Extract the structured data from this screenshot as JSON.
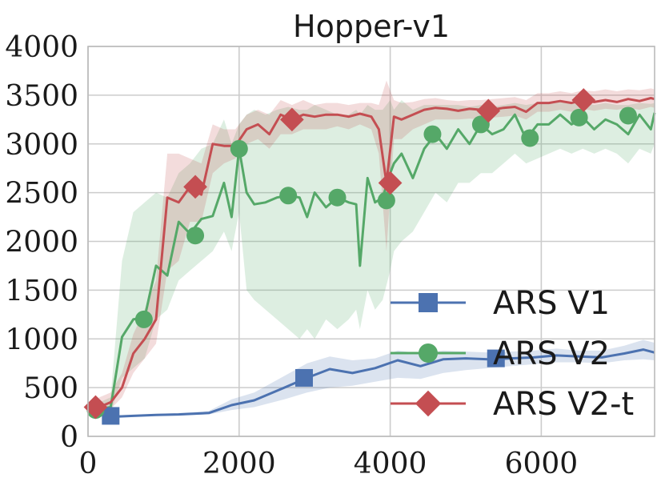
{
  "chart_data": {
    "type": "line",
    "title": "Hopper-v1",
    "xlabel": "",
    "ylabel": "",
    "xlim": [
      0,
      7500
    ],
    "ylim": [
      0,
      4000
    ],
    "xticks": [
      "0",
      "2000",
      "4000",
      "6000"
    ],
    "xtick_values": [
      0,
      2000,
      4000,
      6000
    ],
    "yticks": [
      "0",
      "500",
      "1000",
      "1500",
      "2000",
      "2500",
      "3000",
      "3500",
      "4000"
    ],
    "ytick_values": [
      0,
      500,
      1000,
      1500,
      2000,
      2500,
      3000,
      3500,
      4000
    ],
    "grid": true,
    "legend_position": "lower-right",
    "series": [
      {
        "name": "ARS V1",
        "color": "#4c72b0",
        "marker": "square",
        "x": [
          300,
          600,
          900,
          1200,
          1600,
          1900,
          2200,
          2600,
          2900,
          3200,
          3500,
          3800,
          4100,
          4400,
          4700,
          5000,
          5300,
          5600,
          5900,
          6200,
          6500,
          6800,
          7100,
          7350,
          7500
        ],
        "y": [
          200,
          210,
          220,
          225,
          240,
          320,
          370,
          500,
          600,
          690,
          650,
          700,
          780,
          720,
          790,
          800,
          790,
          800,
          810,
          830,
          820,
          810,
          850,
          890,
          860
        ],
        "lower": [
          190,
          200,
          210,
          215,
          225,
          270,
          300,
          380,
          450,
          500,
          520,
          560,
          600,
          590,
          650,
          680,
          700,
          720,
          740,
          760,
          760,
          750,
          780,
          790,
          780
        ],
        "upper": [
          215,
          220,
          230,
          240,
          260,
          380,
          450,
          620,
          750,
          820,
          780,
          800,
          880,
          850,
          880,
          870,
          860,
          870,
          880,
          900,
          880,
          880,
          930,
          990,
          960
        ],
        "marker_x": [
          300,
          2860,
          5400
        ],
        "marker_y": [
          210,
          600,
          800
        ]
      },
      {
        "name": "ARS V2",
        "color": "#55a868",
        "marker": "circle",
        "x": [
          0,
          150,
          300,
          450,
          600,
          750,
          900,
          1050,
          1200,
          1350,
          1500,
          1650,
          1800,
          1900,
          2000,
          2100,
          2200,
          2350,
          2500,
          2650,
          2800,
          2900,
          3000,
          3150,
          3300,
          3450,
          3550,
          3600,
          3700,
          3800,
          3900,
          4000,
          4050,
          4150,
          4300,
          4450,
          4600,
          4750,
          4900,
          5050,
          5200,
          5350,
          5500,
          5650,
          5800,
          5950,
          6100,
          6250,
          6400,
          6550,
          6700,
          6850,
          7000,
          7150,
          7300,
          7450,
          7500
        ],
        "y": [
          270,
          280,
          300,
          1020,
          1200,
          1220,
          1750,
          1650,
          2200,
          2080,
          2230,
          2260,
          2600,
          2250,
          2950,
          2500,
          2380,
          2400,
          2450,
          2470,
          2450,
          2250,
          2500,
          2350,
          2450,
          2400,
          2380,
          1750,
          2650,
          2400,
          2450,
          2700,
          2800,
          2900,
          2650,
          2950,
          3100,
          2950,
          3150,
          3000,
          3200,
          3100,
          3150,
          3300,
          3050,
          3200,
          3200,
          3300,
          3200,
          3270,
          3150,
          3250,
          3200,
          3100,
          3300,
          3150,
          3320
        ],
        "lower": [
          220,
          230,
          240,
          600,
          700,
          800,
          1200,
          1300,
          1600,
          1700,
          1800,
          1900,
          2100,
          1900,
          2300,
          1500,
          1400,
          1300,
          1200,
          1100,
          1000,
          1100,
          1000,
          1200,
          1100,
          1200,
          1300,
          1100,
          1500,
          1300,
          1400,
          1700,
          1900,
          2000,
          2100,
          2300,
          2500,
          2400,
          2600,
          2600,
          2700,
          2700,
          2800,
          2900,
          2800,
          2850,
          2900,
          2950,
          2900,
          2950,
          2900,
          2950,
          2900,
          2800,
          2950,
          2900,
          3000
        ],
        "upper": [
          330,
          350,
          400,
          1800,
          2300,
          2400,
          2500,
          2450,
          2700,
          2800,
          2950,
          3000,
          3250,
          3000,
          3200,
          3300,
          3350,
          3300,
          3350,
          3380,
          3350,
          3350,
          3400,
          3350,
          3300,
          3300,
          3350,
          3300,
          3400,
          3350,
          3350,
          3450,
          3350,
          3450,
          3350,
          3400,
          3400,
          3400,
          3400,
          3380,
          3400,
          3380,
          3400,
          3420,
          3400,
          3420,
          3420,
          3430,
          3420,
          3430,
          3400,
          3420,
          3400,
          3400,
          3420,
          3410,
          3420
        ],
        "marker_x": [
          100,
          740,
          1420,
          2000,
          2650,
          3300,
          3950,
          4560,
          5200,
          5850,
          6500,
          7150
        ],
        "marker_y": [
          270,
          1200,
          2060,
          2950,
          2470,
          2450,
          2420,
          3100,
          3200,
          3060,
          3270,
          3290
        ]
      },
      {
        "name": "ARS V2-t",
        "color": "#c44e52",
        "marker": "diamond",
        "x": [
          0,
          150,
          300,
          450,
          600,
          750,
          900,
          1050,
          1200,
          1350,
          1500,
          1650,
          1800,
          1950,
          2100,
          2250,
          2400,
          2550,
          2700,
          2850,
          3000,
          3150,
          3300,
          3450,
          3600,
          3750,
          3850,
          3950,
          4050,
          4150,
          4300,
          4450,
          4600,
          4750,
          4900,
          5050,
          5200,
          5350,
          5500,
          5650,
          5800,
          5950,
          6100,
          6250,
          6400,
          6550,
          6700,
          6850,
          7000,
          7150,
          7300,
          7450,
          7500
        ],
        "y": [
          270,
          300,
          350,
          500,
          850,
          1000,
          1200,
          2450,
          2400,
          2560,
          2480,
          3000,
          2980,
          2980,
          3150,
          3200,
          3100,
          3300,
          3250,
          3300,
          3280,
          3300,
          3300,
          3280,
          3310,
          3280,
          3150,
          2600,
          3280,
          3250,
          3300,
          3350,
          3370,
          3360,
          3340,
          3360,
          3350,
          3350,
          3370,
          3380,
          3330,
          3420,
          3420,
          3440,
          3420,
          3450,
          3430,
          3450,
          3430,
          3460,
          3440,
          3470,
          3460
        ],
        "lower": [
          230,
          250,
          280,
          400,
          650,
          800,
          950,
          1700,
          1800,
          2200,
          2200,
          2700,
          2800,
          2850,
          3000,
          3050,
          2950,
          3100,
          3100,
          3150,
          3150,
          3150,
          3180,
          3150,
          3200,
          3150,
          2900,
          1900,
          3050,
          3050,
          3150,
          3200,
          3250,
          3250,
          3250,
          3260,
          3250,
          3270,
          3280,
          3290,
          3250,
          3330,
          3330,
          3350,
          3330,
          3360,
          3340,
          3360,
          3350,
          3370,
          3350,
          3380,
          3370
        ],
        "upper": [
          330,
          400,
          450,
          650,
          1050,
          1300,
          1600,
          2900,
          2900,
          2850,
          2800,
          3200,
          3150,
          3150,
          3300,
          3350,
          3300,
          3450,
          3400,
          3450,
          3400,
          3420,
          3420,
          3400,
          3420,
          3420,
          3400,
          3650,
          3450,
          3420,
          3430,
          3460,
          3470,
          3450,
          3440,
          3450,
          3450,
          3460,
          3470,
          3480,
          3450,
          3520,
          3520,
          3540,
          3520,
          3550,
          3540,
          3560,
          3540,
          3560,
          3550,
          3570,
          3560
        ],
        "marker_x": [
          100,
          1420,
          2700,
          4000,
          5300,
          6560
        ],
        "marker_y": [
          300,
          2560,
          3250,
          2600,
          3340,
          3450
        ]
      }
    ]
  }
}
